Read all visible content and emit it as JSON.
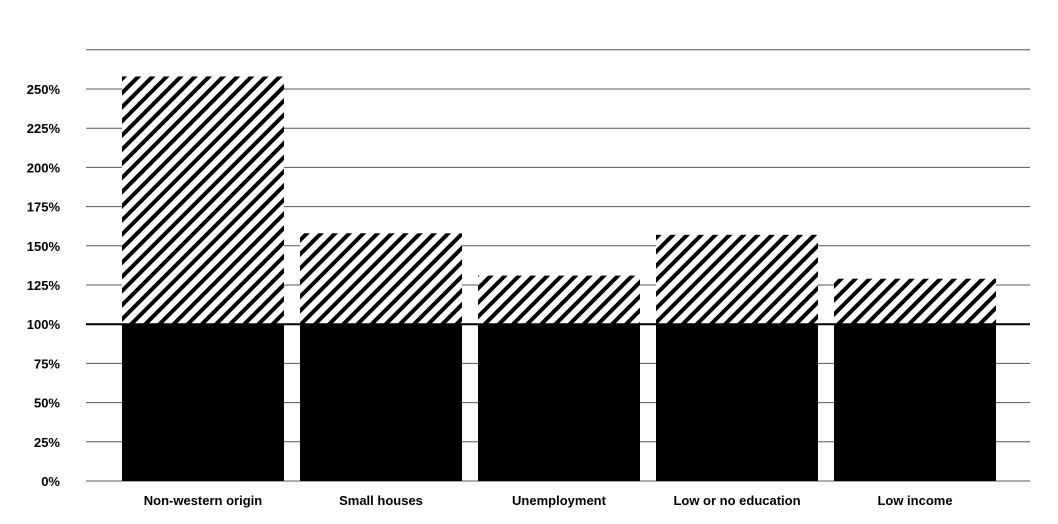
{
  "chart_data": {
    "type": "bar",
    "categories": [
      "Non-western origin",
      "Small houses",
      "Unemployment",
      "Low or no education",
      "Low income"
    ],
    "values": [
      258,
      158,
      131,
      157,
      129
    ],
    "baseline": 100,
    "title": "",
    "xlabel": "",
    "ylabel": "",
    "ylim": [
      0,
      275
    ],
    "yticks": [
      0,
      25,
      50,
      75,
      100,
      125,
      150,
      175,
      200,
      225,
      250
    ],
    "ytick_labels": [
      "0%",
      "25%",
      "50%",
      "75%",
      "100%",
      "125%",
      "150%",
      "175%",
      "200%",
      "225%",
      "250%"
    ],
    "grid": true,
    "legend": "none",
    "colors": {
      "below_baseline": "#000000",
      "above_baseline": "hatched-black-diagonal",
      "grid": "#555555"
    }
  }
}
